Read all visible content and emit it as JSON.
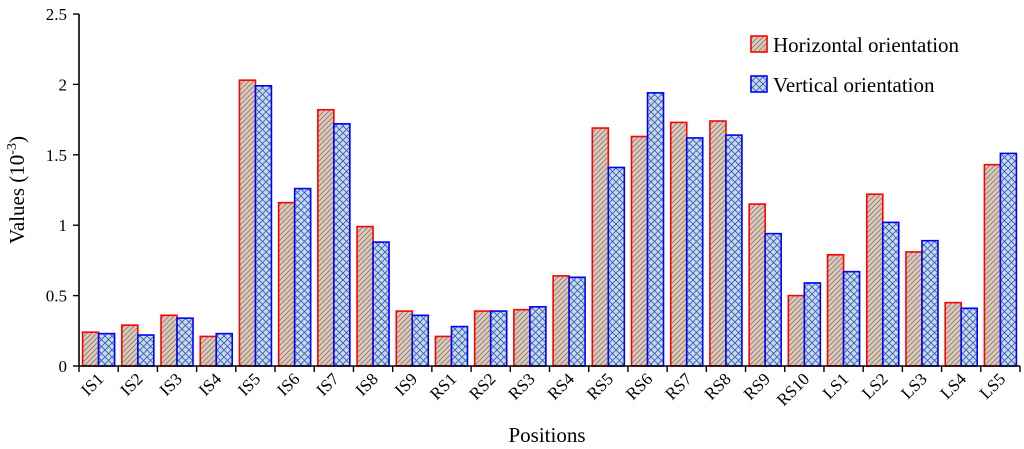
{
  "chart_data": {
    "type": "bar",
    "xlabel": "Positions",
    "ylabel": "Values (10",
    "ylabel_exponent": "-3",
    "ylabel_close": ")",
    "ylim": [
      0,
      2.5
    ],
    "yticks": [
      "0",
      "0.5",
      "1",
      "1.5",
      "2",
      "2.5"
    ],
    "grid": false,
    "legend_position": "top-right",
    "categories": [
      "IS1",
      "IS2",
      "IS3",
      "IS4",
      "IS5",
      "IS6",
      "IS7",
      "IS8",
      "IS9",
      "RS1",
      "RS2",
      "RS3",
      "RS4",
      "RS5",
      "RS6",
      "RS7",
      "RS8",
      "RS9",
      "RS10",
      "LS1",
      "LS2",
      "LS3",
      "LS4",
      "LS5"
    ],
    "series": [
      {
        "name": "Horizontal orientation",
        "color": "#ff0000",
        "fill": "#d9c4b4",
        "pattern": "diagonal-hatch",
        "values": [
          0.24,
          0.29,
          0.36,
          0.21,
          2.03,
          1.16,
          1.82,
          0.99,
          0.39,
          0.21,
          0.39,
          0.4,
          0.64,
          1.69,
          1.63,
          1.73,
          1.74,
          1.15,
          0.5,
          0.79,
          1.22,
          0.81,
          0.45,
          1.43
        ]
      },
      {
        "name": "Vertical orientation",
        "color": "#0000ff",
        "fill": "#bcd8dc",
        "pattern": "cross-hatch",
        "values": [
          0.23,
          0.22,
          0.34,
          0.23,
          1.99,
          1.26,
          1.72,
          0.88,
          0.36,
          0.28,
          0.39,
          0.42,
          0.63,
          1.41,
          1.94,
          1.62,
          1.64,
          0.94,
          0.59,
          0.67,
          1.02,
          0.89,
          0.41,
          1.51
        ]
      }
    ]
  }
}
